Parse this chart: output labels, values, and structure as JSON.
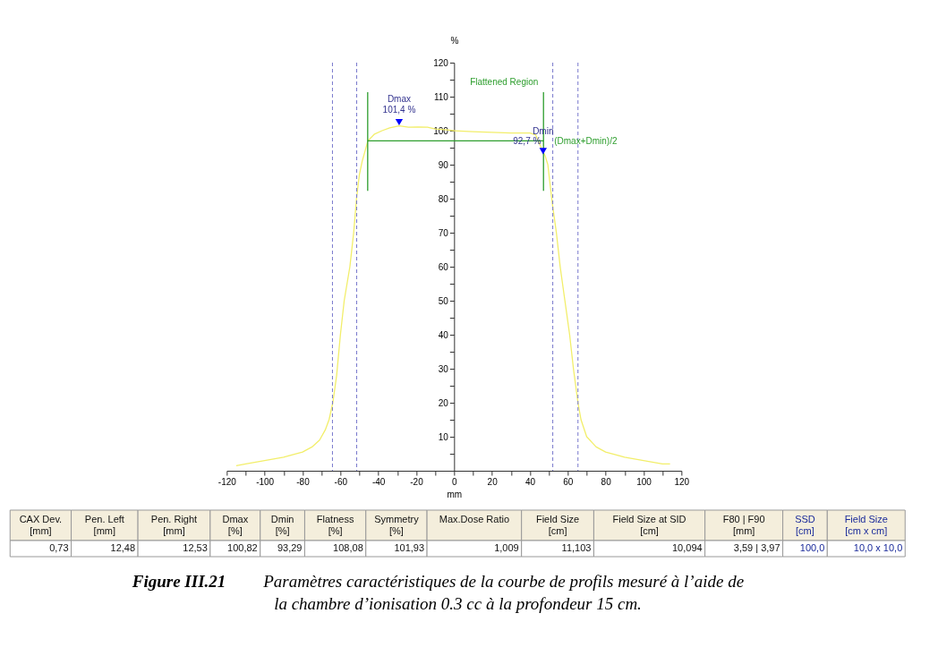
{
  "chart_data": [
    {
      "type": "line",
      "xlabel": "mm",
      "ylabel": "%",
      "xlim": [
        -120,
        120
      ],
      "ylim": [
        0,
        120
      ],
      "xticks": [
        -120,
        {
          "value": -110,
          "label": null
        },
        -100,
        {
          "value": -90,
          "label": null
        },
        -80,
        {
          "value": -70,
          "label": null
        },
        -60,
        {
          "value": -50,
          "label": null
        },
        -40,
        {
          "value": -30,
          "label": null
        },
        -20,
        {
          "value": -10,
          "label": null
        },
        0,
        {
          "value": 10,
          "label": null
        },
        20,
        {
          "value": 30,
          "label": null
        },
        40,
        {
          "value": 50,
          "label": null
        },
        60,
        {
          "value": 70,
          "label": null
        },
        80,
        {
          "value": 90,
          "label": null
        },
        100,
        {
          "value": 110,
          "label": null
        },
        120
      ],
      "yticks": [
        {
          "value": 5,
          "label": null
        },
        10,
        {
          "value": 15,
          "label": null
        },
        20,
        {
          "value": 25,
          "label": null
        },
        30,
        {
          "value": 35,
          "label": null
        },
        40,
        {
          "value": 45,
          "label": null
        },
        50,
        {
          "value": 55,
          "label": null
        },
        60,
        {
          "value": 65,
          "label": null
        },
        70,
        {
          "value": 75,
          "label": null
        },
        80,
        {
          "value": 85,
          "label": null
        },
        90,
        {
          "value": 95,
          "label": null
        },
        100,
        {
          "value": 105,
          "label": null
        },
        110,
        {
          "value": 115,
          "label": null
        },
        120
      ],
      "grid": false,
      "series": [
        {
          "type": "line",
          "color": "#f2ee6a",
          "x": [
            -115,
            -110,
            -100,
            -90,
            -80,
            -75,
            -71,
            -68,
            -66,
            -64,
            -62,
            -60,
            -58,
            -55,
            -53,
            -51.5,
            -50,
            -48.5,
            -47,
            -45.5,
            -42,
            -38,
            -34,
            -29,
            -24,
            -19,
            -14,
            -10,
            -5,
            0,
            10,
            20,
            30,
            40,
            43,
            46,
            48,
            49.5,
            50.5,
            52,
            54,
            56,
            58.5,
            61,
            63,
            65.4,
            67,
            70,
            75,
            80,
            90,
            100,
            110,
            114
          ],
          "values": [
            1.5,
            2,
            3,
            4,
            5.5,
            7,
            9,
            12,
            15,
            20,
            28,
            40,
            50,
            60,
            70,
            80,
            87,
            91,
            94,
            97,
            99,
            100,
            100.8,
            101.4,
            101,
            101.1,
            101,
            100.5,
            100.3,
            100,
            99.7,
            99.5,
            99.3,
            99.3,
            98.8,
            95,
            92.7,
            90,
            85,
            78,
            70,
            60,
            50,
            40,
            30,
            20,
            15,
            10,
            7,
            5.5,
            4,
            3,
            2,
            2
          ]
        },
        {
          "type": "line",
          "color": "#2e9e2e",
          "x": [
            -45.6,
            -45.6
          ],
          "values": [
            82.3,
            111.3
          ]
        },
        {
          "type": "line",
          "color": "#2e9e2e",
          "x": [
            47.2,
            47.2
          ],
          "values": [
            82.3,
            111.3
          ]
        },
        {
          "type": "line",
          "color": "#2e9e2e",
          "x": [
            -45.6,
            47.2
          ],
          "values": [
            97,
            97
          ]
        },
        {
          "type": "scatter",
          "color": "#0000ff",
          "marker": "triangle",
          "x": [
            -29,
            47
          ],
          "values": [
            102.5,
            94
          ]
        }
      ],
      "ref_lines": [
        {
          "axis": "x",
          "value": -64.2,
          "color": "#7777cc",
          "line_style": "dashed"
        },
        {
          "axis": "x",
          "value": -51.4,
          "color": "#7777cc",
          "line_style": "dashed"
        },
        {
          "axis": "x",
          "value": 52.1,
          "color": "#7777cc",
          "line_style": "dashed"
        },
        {
          "axis": "x",
          "value": 65.4,
          "color": "#7777cc",
          "line_style": "dashed"
        }
      ],
      "annotations": [
        "Flattened Region",
        {
          "text": "Dmax",
          "x": -29,
          "y": 102.5
        },
        {
          "text": "101,4 %",
          "x": -29,
          "y": 102.5
        },
        {
          "text": "Dmin",
          "x": 47,
          "y": 94
        },
        {
          "text": "92,7 %",
          "x": 47,
          "y": 94
        },
        {
          "text": "(Dmax+Dmin)/2",
          "x": 47.2,
          "y": 97
        }
      ]
    },
    {
      "type": "other",
      "categories": [
        "CAX Dev.\n[mm]",
        "Pen. Left\n[mm]",
        "Pen. Right\n[mm]",
        "Dmax\n[%]",
        "Dmin\n[%]",
        "Flatness\n[%]",
        "Symmetry\n[%]",
        "Max.Dose Ratio",
        "Field Size\n[cm]",
        "Field Size at SID\n[cm]",
        "F80 | F90\n[mm]",
        "SSD\n[cm]",
        "Field Size\n[cm x cm]"
      ],
      "value_labels": [
        "0,73",
        "12,48",
        "12,53",
        "100,82",
        "93,29",
        "108,08",
        "101,93",
        "1,009",
        "11,103",
        "10,094",
        "3,59 | 3,97",
        "100,0",
        "10,0 x 10,0"
      ],
      "annotations": [
        "Figure III.21",
        "Paramètres caractéristiques de la courbe de profils mesuré à l’aide de la chambre d’ionisation 0.3 cc à la profondeur 15 cm."
      ]
    }
  ]
}
